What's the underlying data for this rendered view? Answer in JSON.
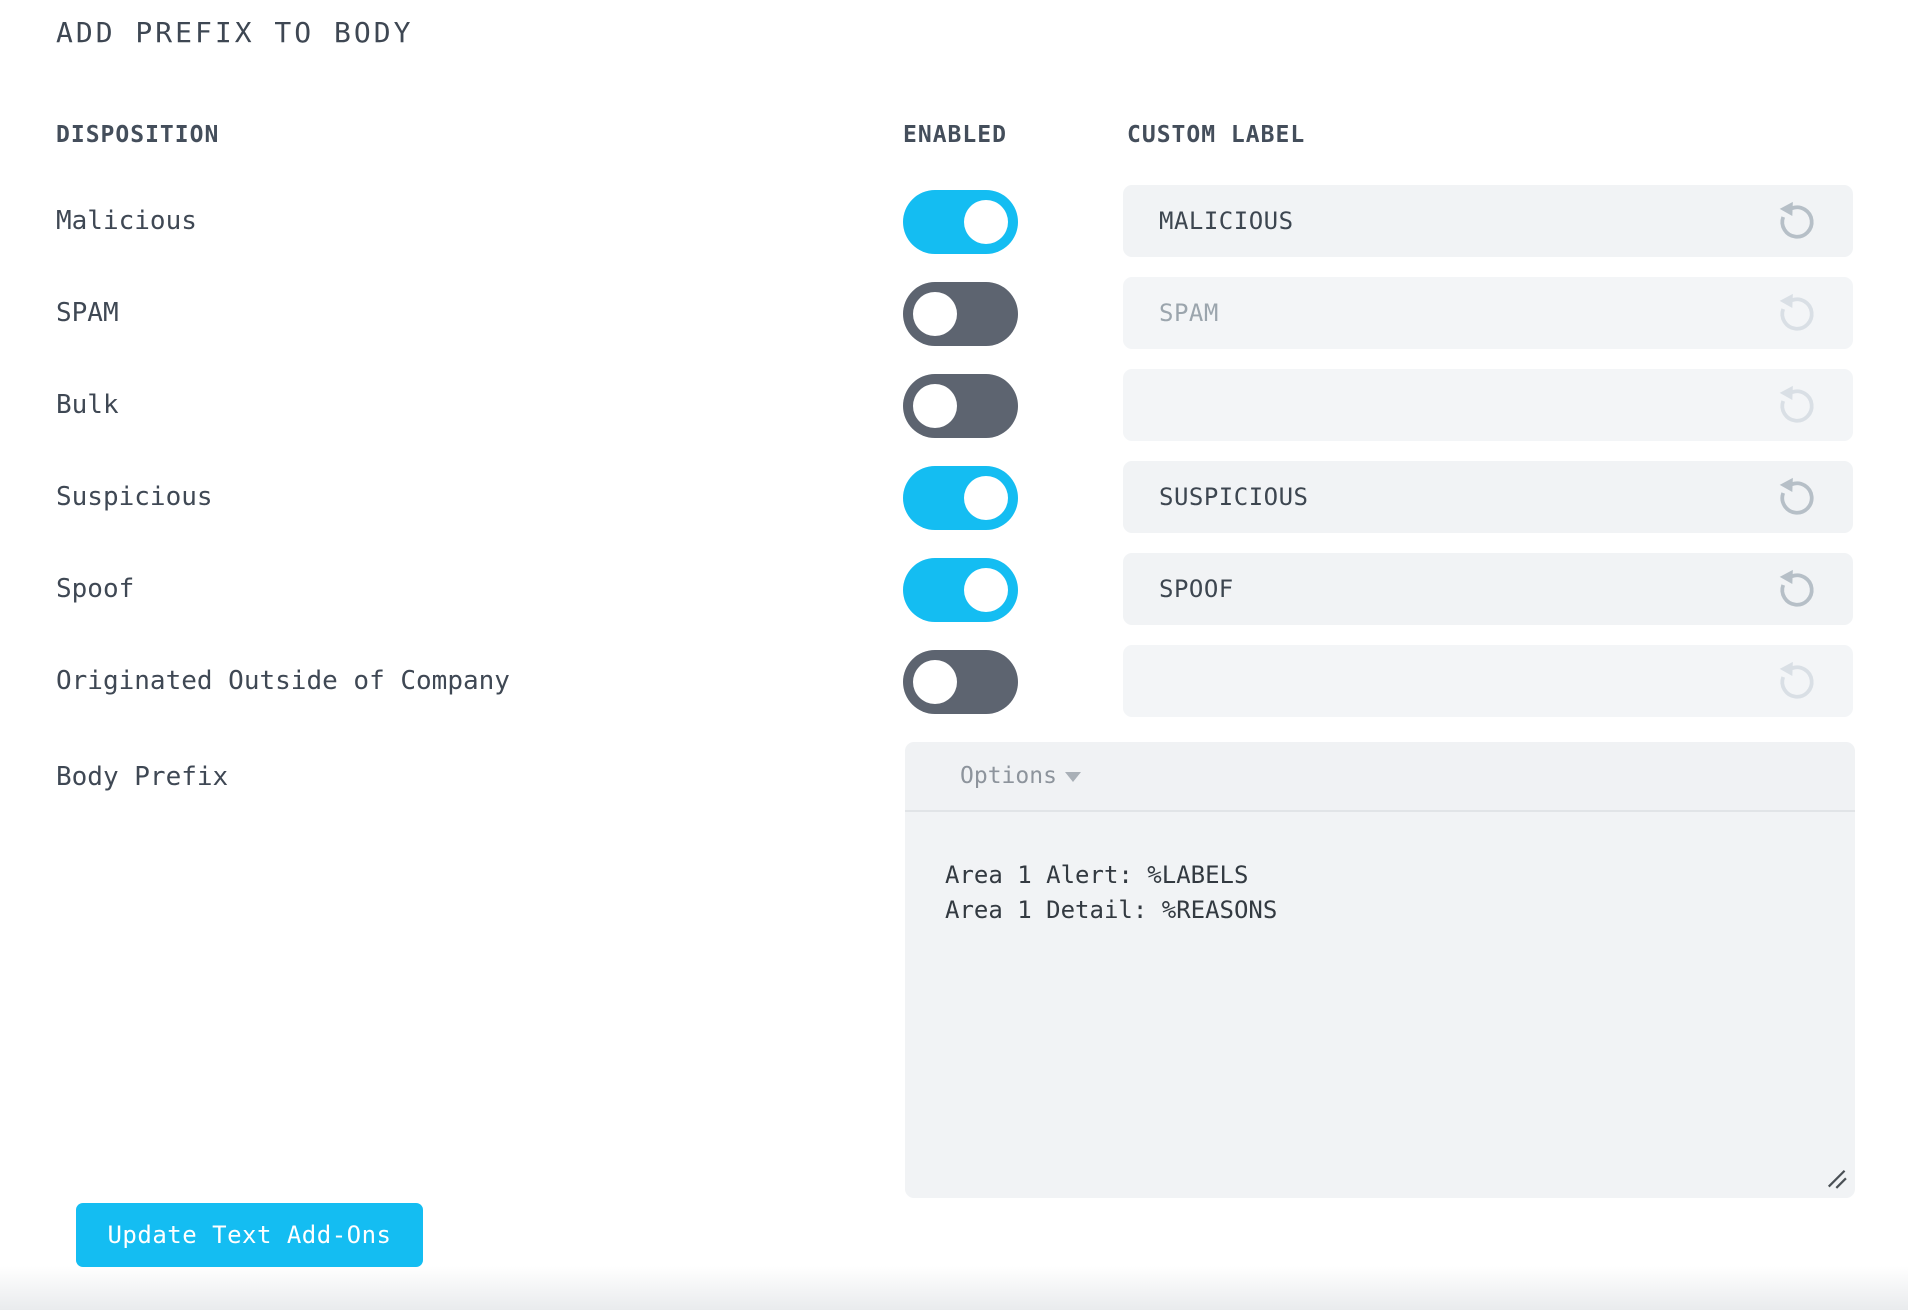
{
  "page": {
    "title": "ADD PREFIX TO BODY"
  },
  "columns": {
    "disposition": "DISPOSITION",
    "enabled": "ENABLED",
    "custom_label": "CUSTOM LABEL"
  },
  "rows": [
    {
      "label": "Malicious",
      "enabled": true,
      "value": "MALICIOUS",
      "placeholder": ""
    },
    {
      "label": "SPAM",
      "enabled": false,
      "value": "",
      "placeholder": "SPAM"
    },
    {
      "label": "Bulk",
      "enabled": false,
      "value": "",
      "placeholder": ""
    },
    {
      "label": "Suspicious",
      "enabled": true,
      "value": "SUSPICIOUS",
      "placeholder": ""
    },
    {
      "label": "Spoof",
      "enabled": true,
      "value": "SPOOF",
      "placeholder": ""
    },
    {
      "label": "Originated Outside of Company",
      "enabled": false,
      "value": "",
      "placeholder": ""
    }
  ],
  "body_prefix": {
    "label": "Body Prefix",
    "options_label": "Options",
    "textarea_value": "Area 1 Alert: %LABELS\nArea 1 Detail: %REASONS"
  },
  "footer": {
    "update_button_label": "Update Text Add-Ons"
  },
  "icons": {
    "reset": "undo-circular-arrow",
    "dropdown": "caret-down",
    "resize": "diagonal-resize-grip"
  },
  "colors": {
    "accent_cyan": "#14bdf2",
    "toggle_off_gray": "#5d6470",
    "field_background": "#f1f3f5",
    "text_dark": "#3f4854",
    "placeholder_gray": "#9ba5ad",
    "reset_icon_gray": "#b6bfc7",
    "reset_icon_disabled": "#d9dfe5",
    "options_text_gray": "#8d949c",
    "bottom_fade_gray": "#e9ebed"
  }
}
